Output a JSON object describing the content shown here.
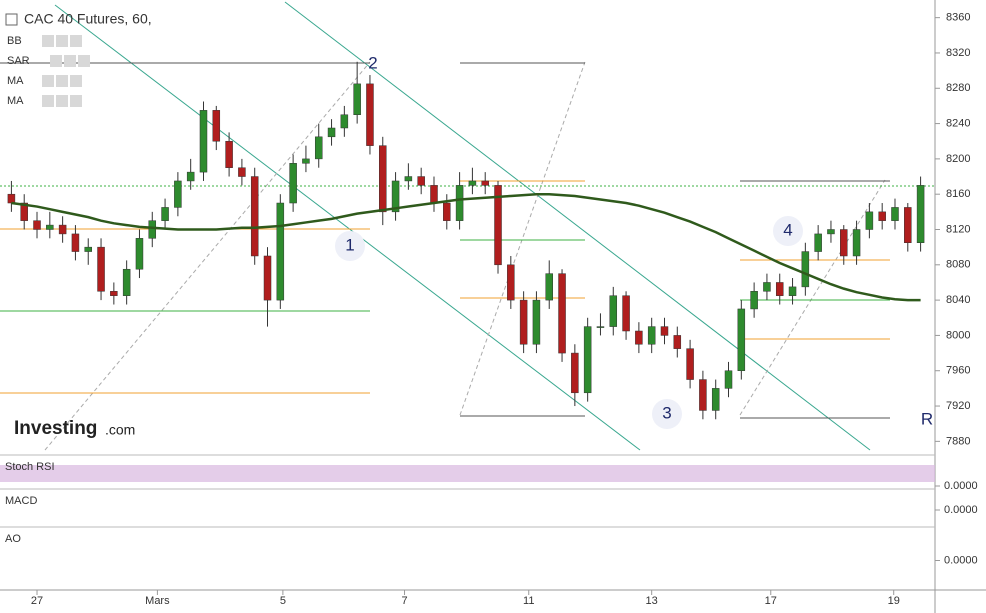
{
  "chart_data": {
    "type": "candlestick",
    "title": "CAC 40 Futures, 60,",
    "indicators": [
      "BB",
      "SAR",
      "MA",
      "MA"
    ],
    "xlim": [
      0,
      72
    ],
    "xticks": [
      {
        "value": 2.5,
        "label": "27"
      },
      {
        "value": 11.9,
        "label": "Mars"
      },
      {
        "value": 21.7,
        "label": "5"
      },
      {
        "value": 31.2,
        "label": "7"
      },
      {
        "value": 40.9,
        "label": "11"
      },
      {
        "value": 50.5,
        "label": "13"
      },
      {
        "value": 59.8,
        "label": "17"
      },
      {
        "value": 69.4,
        "label": "19"
      }
    ],
    "ylim": [
      7860,
      8380
    ],
    "yticks": [
      7880,
      7920,
      7960,
      8000,
      8040,
      8080,
      8120,
      8160,
      8200,
      8240,
      8280,
      8320,
      8360
    ],
    "open": [
      8160,
      8150,
      8130,
      8120,
      8125,
      8115,
      8095,
      8100,
      8050,
      8045,
      8075,
      8110,
      8130,
      8145,
      8175,
      8185,
      8255,
      8220,
      8190,
      8180,
      8090,
      8040,
      8150,
      8195,
      8200,
      8225,
      8235,
      8250,
      8285,
      8215,
      8140,
      8175,
      8180,
      8170,
      8150,
      8130,
      8170,
      8175,
      8170,
      8080,
      8040,
      7990,
      8040,
      8070,
      7980,
      7935,
      8010,
      8010,
      8045,
      8005,
      7990,
      8010,
      8000,
      7985,
      7950,
      7915,
      7940,
      7960,
      8030,
      8050,
      8060,
      8045,
      8055,
      8095,
      8115,
      8120,
      8090,
      8120,
      8140,
      8130,
      8145,
      8105
    ],
    "high": [
      8175,
      8160,
      8140,
      8140,
      8135,
      8125,
      8110,
      8110,
      8060,
      8085,
      8120,
      8140,
      8155,
      8185,
      8200,
      8265,
      8260,
      8230,
      8200,
      8190,
      8100,
      8160,
      8205,
      8215,
      8240,
      8245,
      8260,
      8310,
      8295,
      8225,
      8185,
      8195,
      8190,
      8180,
      8160,
      8185,
      8190,
      8185,
      8175,
      8090,
      8050,
      8050,
      8085,
      8075,
      7990,
      8020,
      8025,
      8055,
      8050,
      8015,
      8020,
      8020,
      8010,
      7995,
      7960,
      7950,
      7970,
      8040,
      8060,
      8070,
      8070,
      8065,
      8105,
      8125,
      8130,
      8125,
      8130,
      8150,
      8150,
      8155,
      8150,
      8180
    ],
    "low": [
      8140,
      8120,
      8110,
      8110,
      8105,
      8085,
      8080,
      8040,
      8035,
      8035,
      8065,
      8100,
      8120,
      8135,
      8165,
      8175,
      8210,
      8180,
      8170,
      8080,
      8010,
      8030,
      8140,
      8185,
      8190,
      8215,
      8225,
      8240,
      8205,
      8125,
      8130,
      8165,
      8160,
      8140,
      8120,
      8120,
      8160,
      8160,
      8070,
      8030,
      7980,
      7980,
      8030,
      7970,
      7920,
      7925,
      8000,
      8000,
      7995,
      7980,
      7980,
      7990,
      7975,
      7940,
      7905,
      7905,
      7930,
      7950,
      8020,
      8040,
      8035,
      8035,
      8045,
      8085,
      8105,
      8080,
      8080,
      8110,
      8120,
      8120,
      8095,
      8095
    ],
    "close": [
      8150,
      8130,
      8120,
      8125,
      8115,
      8095,
      8100,
      8050,
      8045,
      8075,
      8110,
      8130,
      8145,
      8175,
      8185,
      8255,
      8220,
      8190,
      8180,
      8090,
      8040,
      8150,
      8195,
      8200,
      8225,
      8235,
      8250,
      8285,
      8215,
      8140,
      8175,
      8180,
      8170,
      8150,
      8130,
      8170,
      8175,
      8170,
      8080,
      8040,
      7990,
      8040,
      8070,
      7980,
      7935,
      8010,
      8010,
      8045,
      8005,
      7990,
      8010,
      8000,
      7985,
      7950,
      7915,
      7940,
      7960,
      8030,
      8050,
      8060,
      8045,
      8055,
      8095,
      8115,
      8120,
      8090,
      8120,
      8140,
      8130,
      8145,
      8105,
      8170
    ],
    "up_color": "#2e8b2e",
    "down_color": "#b01e1e",
    "series": [
      {
        "name": "MA",
        "color": "#2f5a1c",
        "values": [
          8150,
          8148,
          8146,
          8143,
          8140,
          8137,
          8134,
          8130,
          8127,
          8125,
          8123,
          8122,
          8121,
          8120,
          8120,
          8120,
          8120,
          8121,
          8122,
          8122,
          8123,
          8124,
          8126,
          8128,
          8130,
          8132,
          8135,
          8138,
          8140,
          8142,
          8144,
          8146,
          8148,
          8150,
          8152,
          8154,
          8155,
          8156,
          8157,
          8158,
          8159,
          8160,
          8160,
          8159,
          8158,
          8156,
          8154,
          8152,
          8150,
          8147,
          8143,
          8139,
          8134,
          8129,
          8123,
          8117,
          8110,
          8103,
          8096,
          8089,
          8082,
          8076,
          8070,
          8064,
          8058,
          8053,
          8049,
          8046,
          8043,
          8041,
          8040,
          8040
        ]
      }
    ],
    "annotations": [
      "1",
      "2",
      "3",
      "4",
      "R"
    ],
    "logo": [
      "Investing",
      ".com"
    ],
    "panels": [
      {
        "name": "Stoch RSI",
        "yticks": [
          {
            "value": 0,
            "label": "0.0000"
          }
        ]
      },
      {
        "name": "MACD",
        "yticks": [
          {
            "value": 0,
            "label": "0.0000"
          }
        ]
      },
      {
        "name": "AO",
        "yticks": [
          {
            "value": 0,
            "label": "0.0000"
          }
        ]
      }
    ]
  }
}
